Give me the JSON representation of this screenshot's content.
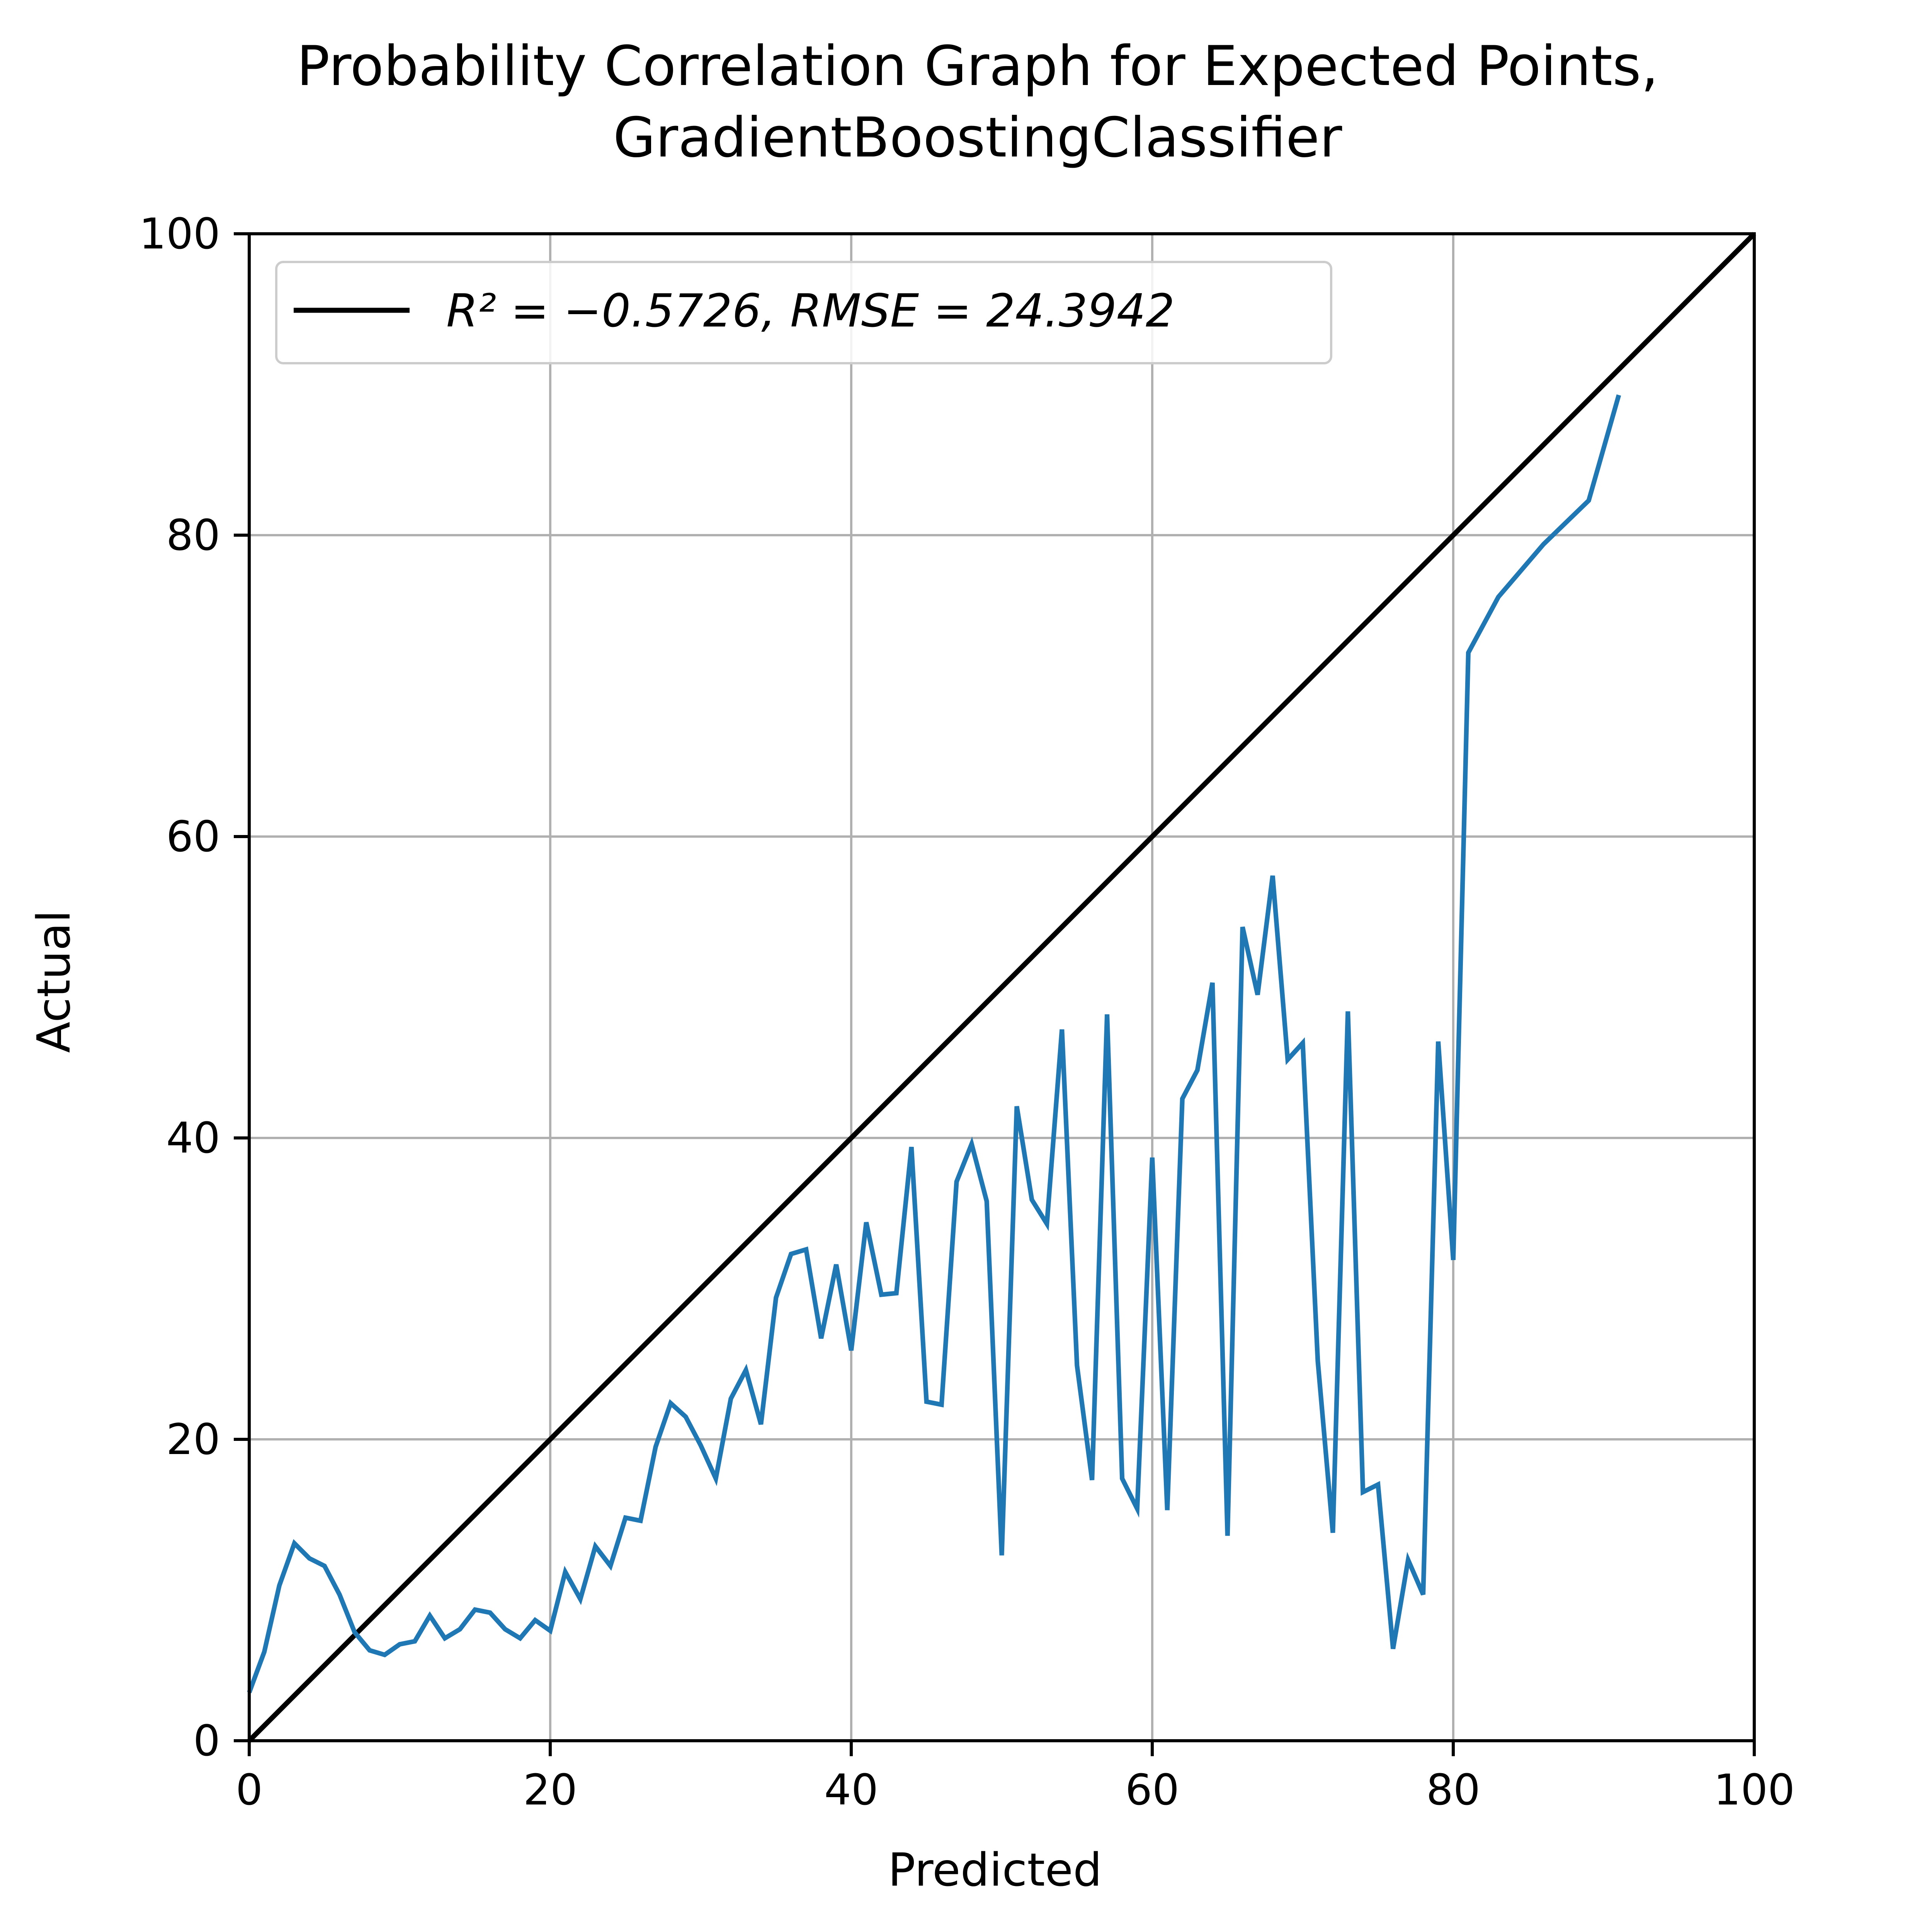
{
  "chart_data": {
    "type": "line",
    "title_line1": "Probability Correlation Graph for Expected Points,",
    "title_line2": "GradientBoostingClassifier",
    "xlabel": "Predicted",
    "ylabel": "Actual",
    "xlim": [
      0,
      100
    ],
    "ylim": [
      0,
      100
    ],
    "xticks": [
      "0",
      "20",
      "40",
      "60",
      "80",
      "100"
    ],
    "yticks": [
      "0",
      "20",
      "40",
      "60",
      "80",
      "100"
    ],
    "grid": true,
    "legend": {
      "placement": "upper-left",
      "label": "R² = −0.5726, RMSE = 24.3942"
    },
    "series": [
      {
        "style": "reference",
        "color": "#000000",
        "x": [
          0,
          100
        ],
        "y": [
          0,
          100
        ]
      },
      {
        "style": "data",
        "color": "#1f77b4",
        "x": [
          0,
          1,
          2,
          3,
          4,
          5,
          6,
          7,
          8,
          9,
          10,
          11,
          12,
          13,
          14,
          15,
          16,
          17,
          18,
          19,
          20,
          21,
          22,
          23,
          24,
          25,
          26,
          27,
          28,
          29,
          30,
          31,
          32,
          33,
          34,
          35,
          36,
          37,
          38,
          39,
          40,
          41,
          42,
          43,
          44,
          45,
          46,
          47,
          48,
          49,
          50,
          51,
          52,
          53,
          54,
          55,
          56,
          57,
          58,
          59,
          60,
          61,
          62,
          63,
          64,
          65,
          66,
          67,
          68,
          69,
          70,
          71,
          72,
          73,
          74,
          75,
          76,
          77,
          78,
          79,
          80,
          81,
          83,
          86,
          89,
          91
        ],
        "y": [
          3.2,
          5.9,
          10.3,
          13.1,
          12.1,
          11.6,
          9.7,
          7.2,
          6.0,
          5.7,
          6.4,
          6.6,
          8.3,
          6.8,
          7.4,
          8.7,
          8.5,
          7.4,
          6.8,
          8.0,
          7.3,
          11.2,
          9.4,
          12.9,
          11.6,
          14.8,
          14.6,
          19.5,
          22.4,
          21.5,
          19.6,
          17.4,
          22.7,
          24.6,
          21.0,
          29.4,
          32.3,
          32.6,
          26.7,
          31.6,
          25.9,
          34.4,
          29.6,
          29.7,
          39.4,
          22.5,
          22.3,
          37.1,
          39.6,
          35.8,
          12.3,
          42.1,
          35.9,
          34.3,
          47.2,
          24.9,
          17.3,
          48.2,
          17.4,
          15.4,
          38.7,
          15.3,
          42.6,
          44.5,
          50.3,
          13.6,
          54.0,
          49.5,
          57.4,
          45.2,
          46.3,
          25.2,
          13.8,
          48.4,
          16.5,
          17.0,
          6.1,
          12.0,
          9.7,
          46.4,
          31.9,
          72.2,
          75.9,
          79.4,
          82.3,
          89.3
        ]
      }
    ]
  }
}
